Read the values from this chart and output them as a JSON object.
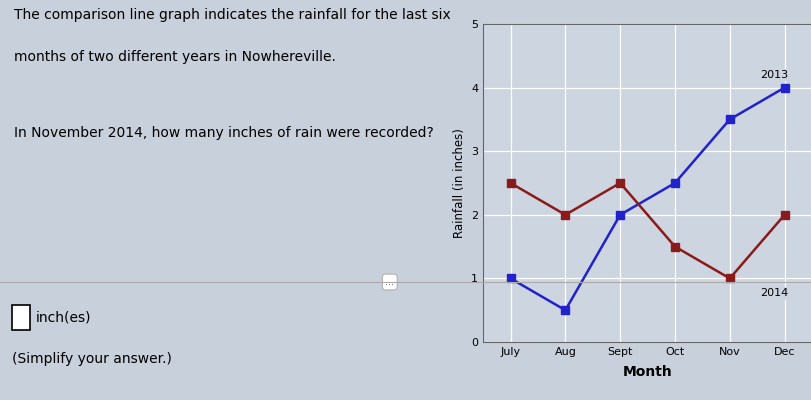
{
  "months": [
    "July",
    "Aug",
    "Sept",
    "Oct",
    "Nov",
    "Dec"
  ],
  "year2013": [
    1,
    0.5,
    2,
    2.5,
    3.5,
    4
  ],
  "year2014": [
    2.5,
    2,
    2.5,
    1.5,
    1,
    2
  ],
  "color_2013": "#2222cc",
  "color_2014": "#8b1a1a",
  "marker": "s",
  "markersize": 6,
  "linewidth": 1.8,
  "ylim": [
    0,
    5
  ],
  "yticks": [
    0,
    1,
    2,
    3,
    4,
    5
  ],
  "ylabel": "Rainfall (in inches)",
  "xlabel": "Month",
  "label_2013": "2013",
  "label_2014": "2014",
  "bg_color": "#cdd5e0",
  "chart_bg": "#cdd5e0",
  "grid_color": "#ffffff",
  "title_line1": "The comparison line graph indicates the rainfall for the last six",
  "title_line2": "months of two different years in Nowhereville.",
  "question_text": "In November 2014, how many inches of rain were recorded?",
  "answer_label": "inch(es)",
  "simplify_label": "(Simplify your answer.)",
  "page_bg": "#c8d0dc"
}
